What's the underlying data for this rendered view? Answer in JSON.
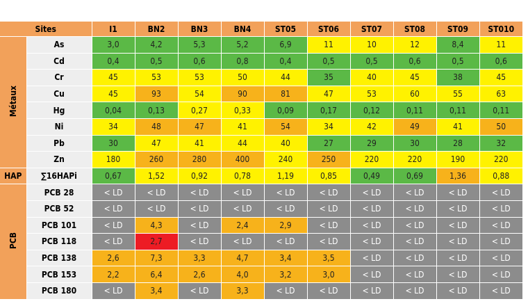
{
  "header": {
    "sites_label": "Sites",
    "sites": [
      "I1",
      "BN2",
      "BN3",
      "BN4",
      "ST05",
      "ST06",
      "ST07",
      "ST08",
      "ST09",
      "ST010"
    ]
  },
  "groups": [
    {
      "label": "Métaux",
      "rows": [
        {
          "param": "As",
          "values": [
            "3,0",
            "4,2",
            "5,3",
            "5,2",
            "6,9",
            "11",
            "10",
            "12",
            "8,4",
            "11"
          ],
          "colors": [
            "green",
            "green",
            "green",
            "green",
            "green",
            "yellow",
            "yellow",
            "yellow",
            "green",
            "yellow"
          ]
        },
        {
          "param": "Cd",
          "values": [
            "0,4",
            "0,5",
            "0,6",
            "0,8",
            "0,4",
            "0,5",
            "0,5",
            "0,6",
            "0,5",
            "0,6"
          ],
          "colors": [
            "green",
            "green",
            "green",
            "green",
            "green",
            "green",
            "green",
            "green",
            "green",
            "green"
          ]
        },
        {
          "param": "Cr",
          "values": [
            "45",
            "53",
            "53",
            "50",
            "44",
            "35",
            "40",
            "45",
            "38",
            "45"
          ],
          "colors": [
            "yellow",
            "yellow",
            "yellow",
            "yellow",
            "yellow",
            "green",
            "yellow",
            "yellow",
            "green",
            "yellow"
          ]
        },
        {
          "param": "Cu",
          "values": [
            "45",
            "93",
            "54",
            "90",
            "81",
            "47",
            "53",
            "60",
            "55",
            "63"
          ],
          "colors": [
            "yellow",
            "orange",
            "yellow",
            "orange",
            "orange",
            "yellow",
            "yellow",
            "yellow",
            "yellow",
            "yellow"
          ]
        },
        {
          "param": "Hg",
          "values": [
            "0,04",
            "0,13",
            "0,27",
            "0,33",
            "0,09",
            "0,17",
            "0,12",
            "0,11",
            "0,11",
            "0,11"
          ],
          "colors": [
            "green",
            "green",
            "yellow",
            "yellow",
            "green",
            "green",
            "green",
            "green",
            "green",
            "green"
          ]
        },
        {
          "param": "Ni",
          "values": [
            "34",
            "48",
            "47",
            "41",
            "54",
            "34",
            "42",
            "49",
            "41",
            "50"
          ],
          "colors": [
            "yellow",
            "orange",
            "orange",
            "yellow",
            "orange",
            "yellow",
            "yellow",
            "orange",
            "yellow",
            "orange"
          ]
        },
        {
          "param": "Pb",
          "values": [
            "30",
            "47",
            "41",
            "44",
            "40",
            "27",
            "29",
            "30",
            "28",
            "32"
          ],
          "colors": [
            "green",
            "yellow",
            "yellow",
            "yellow",
            "yellow",
            "green",
            "green",
            "green",
            "green",
            "green"
          ]
        },
        {
          "param": "Zn",
          "values": [
            "180",
            "260",
            "280",
            "400",
            "240",
            "250",
            "220",
            "220",
            "190",
            "220"
          ],
          "colors": [
            "yellow",
            "orange",
            "orange",
            "orange",
            "yellow",
            "orange",
            "yellow",
            "yellow",
            "yellow",
            "yellow"
          ]
        }
      ]
    },
    {
      "label": "HAP",
      "rows": [
        {
          "param": "∑16HAPi",
          "values": [
            "0,67",
            "1,52",
            "0,92",
            "0,78",
            "1,19",
            "0,85",
            "0,49",
            "0,69",
            "1,36",
            "0,88"
          ],
          "colors": [
            "green",
            "yellow",
            "yellow",
            "yellow",
            "yellow",
            "yellow",
            "green",
            "green",
            "orange",
            "yellow"
          ]
        }
      ]
    },
    {
      "label": "PCB",
      "rows": [
        {
          "param": "PCB 28",
          "values": [
            "< LD",
            "< LD",
            "< LD",
            "< LD",
            "< LD",
            "< LD",
            "< LD",
            "< LD",
            "< LD",
            "< LD"
          ],
          "colors": [
            "grey",
            "grey",
            "grey",
            "grey",
            "grey",
            "grey",
            "grey",
            "grey",
            "grey",
            "grey"
          ]
        },
        {
          "param": "PCB 52",
          "values": [
            "< LD",
            "< LD",
            "< LD",
            "< LD",
            "< LD",
            "< LD",
            "< LD",
            "< LD",
            "< LD",
            "< LD"
          ],
          "colors": [
            "grey",
            "grey",
            "grey",
            "grey",
            "grey",
            "grey",
            "grey",
            "grey",
            "grey",
            "grey"
          ]
        },
        {
          "param": "PCB 101",
          "values": [
            "< LD",
            "4,3",
            "< LD",
            "2,4",
            "2,9",
            "< LD",
            "< LD",
            "< LD",
            "< LD",
            "< LD"
          ],
          "colors": [
            "grey",
            "orange",
            "grey",
            "orange",
            "orange",
            "grey",
            "grey",
            "grey",
            "grey",
            "grey"
          ]
        },
        {
          "param": "PCB 118",
          "values": [
            "< LD",
            "2,7",
            "< LD",
            "< LD",
            "< LD",
            "< LD",
            "< LD",
            "< LD",
            "< LD",
            "< LD"
          ],
          "colors": [
            "grey",
            "red",
            "grey",
            "grey",
            "grey",
            "grey",
            "grey",
            "grey",
            "grey",
            "grey"
          ]
        },
        {
          "param": "PCB 138",
          "values": [
            "2,6",
            "7,3",
            "3,3",
            "4,7",
            "3,4",
            "3,5",
            "< LD",
            "< LD",
            "< LD",
            "< LD"
          ],
          "colors": [
            "orange",
            "orange",
            "orange",
            "orange",
            "orange",
            "orange",
            "grey",
            "grey",
            "grey",
            "grey"
          ]
        },
        {
          "param": "PCB 153",
          "values": [
            "2,2",
            "6,4",
            "2,6",
            "4,0",
            "3,2",
            "3,0",
            "< LD",
            "< LD",
            "< LD",
            "< LD"
          ],
          "colors": [
            "orange",
            "orange",
            "orange",
            "orange",
            "orange",
            "orange",
            "grey",
            "grey",
            "grey",
            "grey"
          ]
        },
        {
          "param": "PCB 180",
          "values": [
            "< LD",
            "3,4",
            "< LD",
            "3,3",
            "< LD",
            "< LD",
            "< LD",
            "< LD",
            "< LD",
            "< LD"
          ],
          "colors": [
            "grey",
            "orange",
            "grey",
            "orange",
            "grey",
            "grey",
            "grey",
            "grey",
            "grey",
            "grey"
          ]
        }
      ]
    }
  ]
}
